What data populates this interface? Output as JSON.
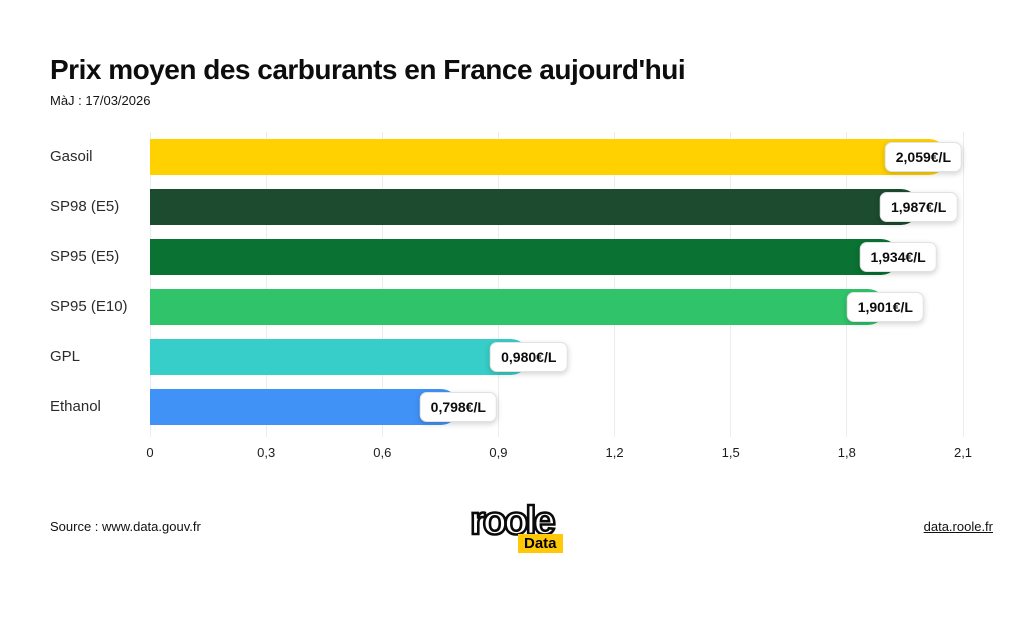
{
  "header": {
    "title": "Prix moyen des carburants en France aujourd'hui",
    "updated": "MàJ : 17/03/2026"
  },
  "chart_data": {
    "type": "bar",
    "orientation": "horizontal",
    "title": "Prix moyen des carburants en France aujourd'hui",
    "categories": [
      "Gasoil",
      "SP98 (E5)",
      "SP95 (E5)",
      "SP95 (E10)",
      "GPL",
      "Ethanol"
    ],
    "values": [
      2.059,
      1.987,
      1.934,
      1.901,
      0.98,
      0.798
    ],
    "value_labels": [
      "2,059€/L",
      "1,987€/L",
      "1,934€/L",
      "1,901€/L",
      "0,980€/L",
      "0,798€/L"
    ],
    "bar_colors": [
      "#FFD100",
      "#1C4B2F",
      "#0A7232",
      "#30C369",
      "#37CDC8",
      "#4192F7"
    ],
    "unit": "€/L",
    "xlim": [
      0,
      2.1
    ],
    "xtick_values": [
      0,
      0.3,
      0.6,
      0.9,
      1.2,
      1.5,
      1.8,
      2.1
    ],
    "xtick_labels": [
      "0",
      "0,3",
      "0,6",
      "0,9",
      "1,2",
      "1,5",
      "1,8",
      "2,1"
    ],
    "grid": "vertical",
    "legend": "none"
  },
  "footer": {
    "source": "Source : www.data.gouv.fr",
    "link": "data.roole.fr",
    "logo": {
      "word": "roole",
      "badge": "Data",
      "badge_color": "#ffc90a"
    }
  }
}
